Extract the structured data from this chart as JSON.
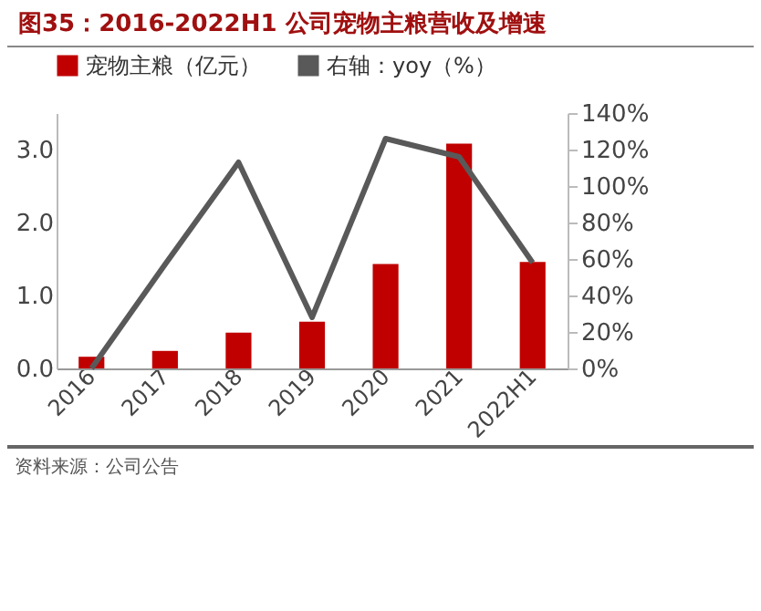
{
  "chart_data": {
    "type": "bar",
    "title": "图35：2016-2022H1 公司宠物主粮营收及增速",
    "categories": [
      "2016",
      "2017",
      "2018",
      "2019",
      "2020",
      "2021",
      "2022H1"
    ],
    "series": [
      {
        "name": "宠物主粮（亿元）",
        "color": "#c00000",
        "values": [
          0.16,
          0.24,
          0.49,
          0.64,
          1.43,
          3.08,
          1.46
        ]
      },
      {
        "name": "右轴：yoy（%）",
        "type": "line",
        "axis": "y2",
        "color": "#595959",
        "values": [
          0,
          57,
          113,
          28,
          126,
          116,
          58
        ]
      }
    ],
    "ylim": [
      0,
      3.5
    ],
    "yticks": [
      {
        "value": 0,
        "label": "0.0"
      },
      {
        "value": 1,
        "label": "1.0"
      },
      {
        "value": 2,
        "label": "2.0"
      },
      {
        "value": 3,
        "label": "3.0"
      }
    ],
    "y2lim": [
      0,
      140
    ],
    "y2ticks": [
      {
        "value": 0,
        "label": "0%"
      },
      {
        "value": 20,
        "label": "20%"
      },
      {
        "value": 40,
        "label": "40%"
      },
      {
        "value": 60,
        "label": "60%"
      },
      {
        "value": 80,
        "label": "80%"
      },
      {
        "value": 100,
        "label": "100%"
      },
      {
        "value": 120,
        "label": "120%"
      },
      {
        "value": 140,
        "label": "140%"
      }
    ],
    "legend": "top",
    "marker": "none",
    "annotations": [
      "资料来源：公司公告"
    ]
  }
}
